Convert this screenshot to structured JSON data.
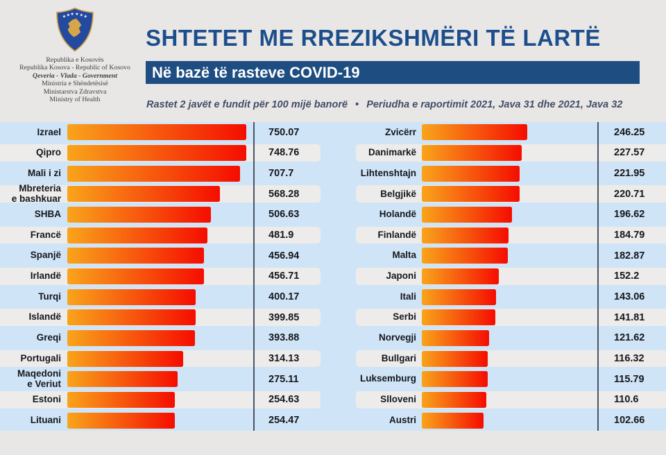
{
  "logo": {
    "emblem": "kosovo-coat-of-arms",
    "lines": [
      "Republika e Kosovës",
      "Republika Kosova - Republic of Kosovo",
      "Qeveria - Vlada - Government",
      "Ministria e Shëndetësisë",
      "Ministarstva Zdravstva",
      "Ministry of Health"
    ]
  },
  "header": {
    "note_left": "Rastet 2 javët e fundit për 100 mijë banorë",
    "note_bullet": "•",
    "note_right": "Periudha e raportimit 2021, Java 31 dhe 2021, Java 32"
  },
  "colors": {
    "page-bg": "#e9e7e6",
    "title-blue": "#1d4e8c",
    "banner-blue": "#1e4d81",
    "note-color": "#414e66",
    "row-blue": "#cfe4f7",
    "row-gray": "#edeceb",
    "bar-orange": "#f9a41b",
    "bar-red": "#f50d00",
    "divider": "#4a5565",
    "text-dark": "#15171c",
    "emblem-blue": "#244a9f",
    "emblem-gold": "#d6a648"
  },
  "chart_data": {
    "type": "bar",
    "orientation": "horizontal",
    "title": "SHTETET ME RREZIKSHMËRI TË LARTË",
    "subtitle": "Në bazë të rasteve COVID-19",
    "note": "Rastet 2 javët e fundit për 100 mijë banorë • Periudha e raportimit 2021, Java 31 dhe 2021, Java 32",
    "value_axis": "rastet e 2 javëve të fundit për 100 mijë banorë",
    "legend": "none",
    "grid": "off",
    "columns": [
      {
        "rows": [
          {
            "label": "Izrael",
            "value": 750.07,
            "display": "750.07"
          },
          {
            "label": "Qipro",
            "value": 748.76,
            "display": "748.76"
          },
          {
            "label": "Mali i zi",
            "value": 707.7,
            "display": "707.7"
          },
          {
            "label": "Mbreteria\ne bashkuar",
            "value": 568.28,
            "display": "568.28"
          },
          {
            "label": "SHBA",
            "value": 506.63,
            "display": "506.63"
          },
          {
            "label": "Francë",
            "value": 481.9,
            "display": "481.9"
          },
          {
            "label": "Spanjë",
            "value": 456.94,
            "display": "456.94"
          },
          {
            "label": "Irlandë",
            "value": 456.71,
            "display": "456.71"
          },
          {
            "label": "Turqi",
            "value": 400.17,
            "display": "400.17"
          },
          {
            "label": "Islandë",
            "value": 399.85,
            "display": "399.85"
          },
          {
            "label": "Greqi",
            "value": 393.88,
            "display": "393.88"
          },
          {
            "label": "Portugali",
            "value": 314.13,
            "display": "314.13"
          },
          {
            "label": "Maqedoni\ne Veriut",
            "value": 275.11,
            "display": "275.11"
          },
          {
            "label": "Estoni",
            "value": 254.63,
            "display": "254.63"
          },
          {
            "label": "Lituani",
            "value": 254.47,
            "display": "254.47"
          }
        ]
      },
      {
        "rows": [
          {
            "label": "Zvicërr",
            "value": 246.25,
            "display": "246.25"
          },
          {
            "label": "Danimarkë",
            "value": 227.57,
            "display": "227.57"
          },
          {
            "label": "Lihtenshtajn",
            "value": 221.95,
            "display": "221.95"
          },
          {
            "label": "Belgjikë",
            "value": 220.71,
            "display": "220.71"
          },
          {
            "label": "Holandë",
            "value": 196.62,
            "display": "196.62"
          },
          {
            "label": "Finlandë",
            "value": 184.79,
            "display": "184.79"
          },
          {
            "label": "Malta",
            "value": 182.87,
            "display": "182.87"
          },
          {
            "label": "Japoni",
            "value": 152.2,
            "display": "152.2"
          },
          {
            "label": "Itali",
            "value": 143.06,
            "display": "143.06"
          },
          {
            "label": "Serbi",
            "value": 141.81,
            "display": "141.81"
          },
          {
            "label": "Norvegji",
            "value": 121.62,
            "display": "121.62"
          },
          {
            "label": "Bullgari",
            "value": 116.32,
            "display": "116.32"
          },
          {
            "label": "Luksemburg",
            "value": 115.79,
            "display": "115.79"
          },
          {
            "label": "Slloveni",
            "value": 110.6,
            "display": "110.6"
          },
          {
            "label": "Austri",
            "value": 102.66,
            "display": "102.66"
          }
        ]
      }
    ]
  }
}
